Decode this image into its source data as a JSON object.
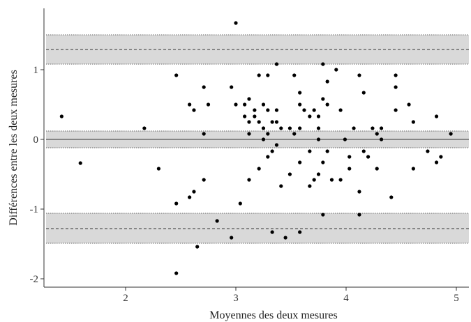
{
  "chart_data": {
    "type": "scatter",
    "title": "",
    "xlabel": "Moyennes des deux mesures",
    "ylabel": "Différences entre les deux mesures",
    "xlim": [
      1.3,
      5.15
    ],
    "ylim": [
      -2.1,
      1.85
    ],
    "x_ticks": [
      {
        "value": 2,
        "label": "2"
      },
      {
        "value": 3,
        "label": "3"
      },
      {
        "value": 4,
        "label": "4"
      },
      {
        "value": 5,
        "label": "5"
      }
    ],
    "y_ticks": [
      {
        "value": -2,
        "label": "-2"
      },
      {
        "value": -1,
        "label": "-1"
      },
      {
        "value": 0,
        "label": "0"
      },
      {
        "value": 1,
        "label": "1"
      }
    ],
    "grid": false,
    "reference_lines": [
      {
        "value": 1.29,
        "ci": [
          1.08,
          1.5
        ],
        "style": "dashed"
      },
      {
        "value": 0.0,
        "ci": [
          -0.12,
          0.12
        ],
        "style": "solid"
      },
      {
        "value": -1.28,
        "ci": [
          -1.49,
          -1.06
        ],
        "style": "dashed"
      }
    ],
    "colors": {
      "points": "#000000",
      "band_fill": "#d9d9d9",
      "band_edge": "#666666",
      "axis": "#333333"
    },
    "points": [
      [
        1.42,
        0.33
      ],
      [
        1.59,
        -0.34
      ],
      [
        2.17,
        0.16
      ],
      [
        2.3,
        -0.42
      ],
      [
        2.46,
        0.92
      ],
      [
        2.46,
        -0.92
      ],
      [
        2.46,
        -1.92
      ],
      [
        2.58,
        0.5
      ],
      [
        2.58,
        -0.83
      ],
      [
        2.62,
        0.42
      ],
      [
        2.62,
        -0.75
      ],
      [
        2.65,
        -1.54
      ],
      [
        2.71,
        0.75
      ],
      [
        2.71,
        0.08
      ],
      [
        2.71,
        -0.58
      ],
      [
        2.75,
        0.5
      ],
      [
        2.83,
        -1.17
      ],
      [
        2.96,
        0.75
      ],
      [
        2.96,
        -1.41
      ],
      [
        3.0,
        1.67
      ],
      [
        3.0,
        0.5
      ],
      [
        3.04,
        -0.92
      ],
      [
        3.08,
        0.5
      ],
      [
        3.08,
        0.33
      ],
      [
        3.12,
        0.58
      ],
      [
        3.12,
        0.25
      ],
      [
        3.12,
        0.08
      ],
      [
        3.12,
        -0.58
      ],
      [
        3.17,
        0.42
      ],
      [
        3.17,
        0.33
      ],
      [
        3.21,
        0.92
      ],
      [
        3.21,
        0.25
      ],
      [
        3.21,
        -0.42
      ],
      [
        3.25,
        0.5
      ],
      [
        3.25,
        0.16
      ],
      [
        3.25,
        0.0
      ],
      [
        3.29,
        0.92
      ],
      [
        3.29,
        0.42
      ],
      [
        3.29,
        0.08
      ],
      [
        3.29,
        -0.25
      ],
      [
        3.33,
        0.25
      ],
      [
        3.33,
        -0.17
      ],
      [
        3.33,
        -1.33
      ],
      [
        3.37,
        1.08
      ],
      [
        3.37,
        0.42
      ],
      [
        3.37,
        0.25
      ],
      [
        3.37,
        -0.08
      ],
      [
        3.41,
        0.16
      ],
      [
        3.41,
        -0.67
      ],
      [
        3.45,
        -1.41
      ],
      [
        3.49,
        0.16
      ],
      [
        3.49,
        -0.5
      ],
      [
        3.53,
        0.92
      ],
      [
        3.53,
        0.08
      ],
      [
        3.58,
        0.67
      ],
      [
        3.58,
        0.5
      ],
      [
        3.58,
        0.16
      ],
      [
        3.58,
        -0.33
      ],
      [
        3.58,
        -1.33
      ],
      [
        3.62,
        0.42
      ],
      [
        3.67,
        0.33
      ],
      [
        3.67,
        -0.17
      ],
      [
        3.67,
        -0.67
      ],
      [
        3.71,
        0.42
      ],
      [
        3.71,
        -0.58
      ],
      [
        3.75,
        0.33
      ],
      [
        3.75,
        0.16
      ],
      [
        3.75,
        0.0
      ],
      [
        3.75,
        -0.5
      ],
      [
        3.79,
        1.08
      ],
      [
        3.79,
        0.58
      ],
      [
        3.79,
        -0.33
      ],
      [
        3.79,
        -1.08
      ],
      [
        3.83,
        0.83
      ],
      [
        3.83,
        0.5
      ],
      [
        3.83,
        -0.17
      ],
      [
        3.87,
        -0.58
      ],
      [
        3.91,
        1.0
      ],
      [
        3.95,
        0.42
      ],
      [
        3.95,
        -0.58
      ],
      [
        3.99,
        0.0
      ],
      [
        4.03,
        -0.25
      ],
      [
        4.03,
        -0.42
      ],
      [
        4.07,
        0.16
      ],
      [
        4.12,
        0.92
      ],
      [
        4.12,
        -0.75
      ],
      [
        4.12,
        -1.08
      ],
      [
        4.16,
        0.67
      ],
      [
        4.16,
        -0.17
      ],
      [
        4.2,
        -0.25
      ],
      [
        4.24,
        0.16
      ],
      [
        4.28,
        0.08
      ],
      [
        4.28,
        -0.42
      ],
      [
        4.32,
        0.16
      ],
      [
        4.32,
        0.0
      ],
      [
        4.41,
        -0.83
      ],
      [
        4.45,
        0.92
      ],
      [
        4.45,
        0.75
      ],
      [
        4.45,
        0.42
      ],
      [
        4.57,
        0.5
      ],
      [
        4.61,
        0.25
      ],
      [
        4.61,
        -0.42
      ],
      [
        4.74,
        -0.17
      ],
      [
        4.82,
        0.33
      ],
      [
        4.82,
        -0.33
      ],
      [
        4.86,
        -0.25
      ],
      [
        4.95,
        0.08
      ]
    ]
  }
}
